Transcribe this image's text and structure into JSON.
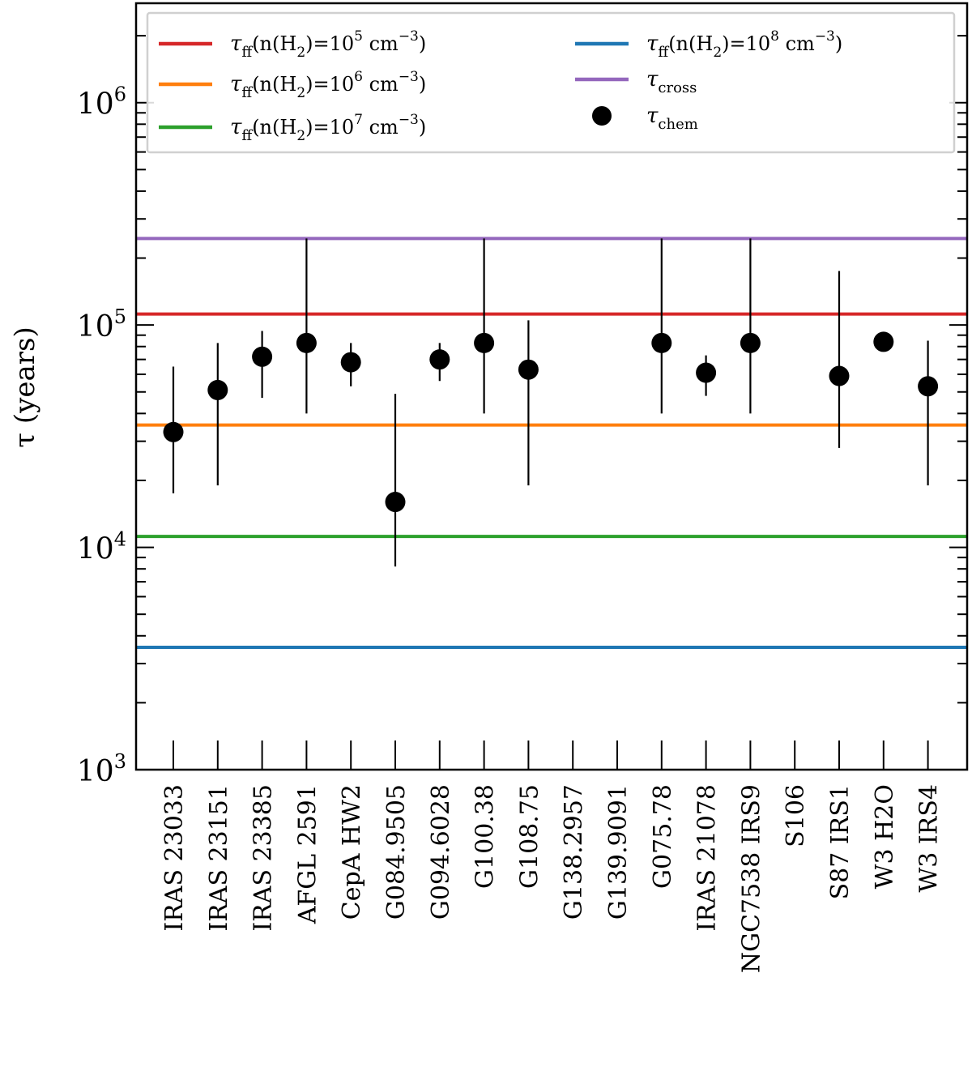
{
  "chart_data": {
    "type": "scatter",
    "yscale": "log",
    "ylabel": "τ (years)",
    "ylim": [
      1000,
      2800000
    ],
    "yticks": [
      {
        "value": 1000,
        "mantissa": "10",
        "exponent": "3"
      },
      {
        "value": 10000,
        "mantissa": "10",
        "exponent": "4"
      },
      {
        "value": 100000,
        "mantissa": "10",
        "exponent": "5"
      },
      {
        "value": 1000000,
        "mantissa": "10",
        "exponent": "6"
      }
    ],
    "categories": [
      "IRAS 23033",
      "IRAS 23151",
      "IRAS 23385",
      "AFGL 2591",
      "CepA HW2",
      "G084.9505",
      "G094.6028",
      "G100.38",
      "G108.75",
      "G138.2957",
      "G139.9091",
      "G075.78",
      "IRAS 21078",
      "NGC7538 IRS9",
      "S106",
      "S87 IRS1",
      "W3 H2O",
      "W3 IRS4"
    ],
    "points": [
      {
        "category": "IRAS 23033",
        "value": 33000,
        "err_low": 17500,
        "err_high": 65000
      },
      {
        "category": "IRAS 23151",
        "value": 51000,
        "err_low": 19000,
        "err_high": 83000
      },
      {
        "category": "IRAS 23385",
        "value": 72000,
        "err_low": 47000,
        "err_high": 94000
      },
      {
        "category": "AFGL 2591",
        "value": 83000,
        "err_low": 40000,
        "err_high": 245000
      },
      {
        "category": "CepA HW2",
        "value": 68000,
        "err_low": 53000,
        "err_high": 83000
      },
      {
        "category": "G084.9505",
        "value": 16000,
        "err_low": 8200,
        "err_high": 49000
      },
      {
        "category": "G094.6028",
        "value": 70000,
        "err_low": 56000,
        "err_high": 83000
      },
      {
        "category": "G100.38",
        "value": 83000,
        "err_low": 40000,
        "err_high": 245000
      },
      {
        "category": "G108.75",
        "value": 63000,
        "err_low": 19000,
        "err_high": 105000
      },
      {
        "category": "G075.78",
        "value": 83000,
        "err_low": 40000,
        "err_high": 245000
      },
      {
        "category": "IRAS 21078",
        "value": 61000,
        "err_low": 48000,
        "err_high": 73000
      },
      {
        "category": "NGC7538 IRS9",
        "value": 83000,
        "err_low": 40000,
        "err_high": 245000
      },
      {
        "category": "S87 IRS1",
        "value": 59000,
        "err_low": 28000,
        "err_high": 175000
      },
      {
        "category": "W3 H2O",
        "value": 84000,
        "err_low": 84000,
        "err_high": 84000
      },
      {
        "category": "W3 IRS4",
        "value": 53000,
        "err_low": 19000,
        "err_high": 85000
      }
    ],
    "hlines": [
      {
        "name": "tau_ff_1e5",
        "value": 112000,
        "color": "#d62728"
      },
      {
        "name": "tau_ff_1e6",
        "value": 35500,
        "color": "#ff7f0e"
      },
      {
        "name": "tau_ff_1e7",
        "value": 11200,
        "color": "#2ca02c"
      },
      {
        "name": "tau_ff_1e8",
        "value": 3550,
        "color": "#1f77b4"
      },
      {
        "name": "tau_cross",
        "value": 245000,
        "color": "#9467bd"
      }
    ],
    "legend": {
      "placement": "top",
      "entries": [
        {
          "kind": "line",
          "color": "#d62728",
          "label": "τff(n(H2)=10^5 cm^−3)",
          "sym": "τ",
          "sub": "ff",
          "pre": "(n(H",
          "sub2": "2",
          "mid": ")=10",
          "sup": "5",
          "post": " cm",
          "sup2": "−3",
          "end": ")"
        },
        {
          "kind": "line",
          "color": "#ff7f0e",
          "label": "τff(n(H2)=10^6 cm^−3)",
          "sym": "τ",
          "sub": "ff",
          "pre": "(n(H",
          "sub2": "2",
          "mid": ")=10",
          "sup": "6",
          "post": " cm",
          "sup2": "−3",
          "end": ")"
        },
        {
          "kind": "line",
          "color": "#2ca02c",
          "label": "τff(n(H2)=10^7 cm^−3)",
          "sym": "τ",
          "sub": "ff",
          "pre": "(n(H",
          "sub2": "2",
          "mid": ")=10",
          "sup": "7",
          "post": " cm",
          "sup2": "−3",
          "end": ")"
        },
        {
          "kind": "line",
          "color": "#1f77b4",
          "label": "τff(n(H2)=10^8 cm^−3)",
          "sym": "τ",
          "sub": "ff",
          "pre": "(n(H",
          "sub2": "2",
          "mid": ")=10",
          "sup": "8",
          "post": " cm",
          "sup2": "−3",
          "end": ")"
        },
        {
          "kind": "line",
          "color": "#9467bd",
          "label": "τcross",
          "sym": "τ",
          "sub": "cross"
        },
        {
          "kind": "marker",
          "color": "#000000",
          "label": "τchem",
          "sym": "τ",
          "sub": "chem"
        }
      ]
    }
  }
}
